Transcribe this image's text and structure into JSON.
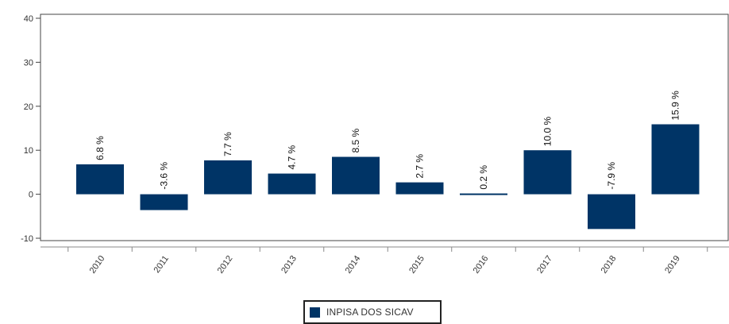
{
  "chart_data": {
    "type": "bar",
    "categories": [
      "2010",
      "2011",
      "2012",
      "2013",
      "2014",
      "2015",
      "2016",
      "2017",
      "2018",
      "2019"
    ],
    "series": [
      {
        "name": "INPISA DOS SICAV",
        "values": [
          6.8,
          -3.6,
          7.7,
          4.7,
          8.5,
          2.7,
          0.2,
          10.0,
          -7.9,
          15.9
        ],
        "labels": [
          "6.8 %",
          "-3.6 %",
          "7.7 %",
          "4.7 %",
          "8.5 %",
          "2.7 %",
          "0.2 %",
          "10.0 %",
          "-7.9 %",
          "15.9 %"
        ]
      }
    ],
    "ylim": [
      -10,
      40
    ],
    "yticks": [
      -10,
      0,
      10,
      20,
      30,
      40
    ],
    "ytick_labels": [
      "-10",
      "0",
      "10",
      "20",
      "30",
      "40"
    ],
    "legend_position": "bottom-center",
    "bar_color": "#003466",
    "grid": false
  }
}
